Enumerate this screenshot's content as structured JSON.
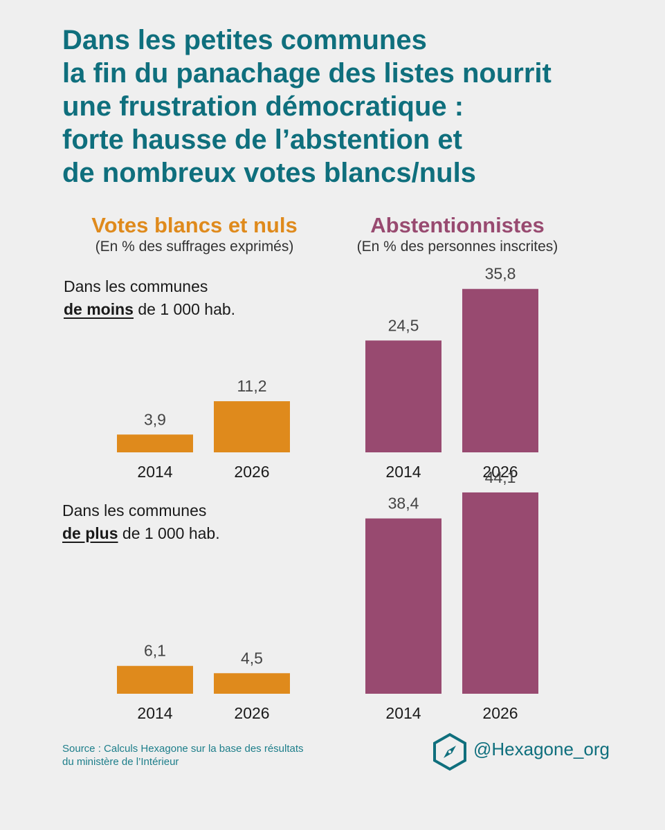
{
  "title_lines": [
    "Dans les petites communes",
    "la fin du panachage des listes nourrit",
    "une frustration démocratique :",
    "forte hausse de l’abstention et",
    "de nombreux votes blancs/nuls"
  ],
  "sections": {
    "blancs": {
      "title": "Votes blancs et nuls",
      "subtitle": "(En % des suffrages exprimés)"
    },
    "abst": {
      "title": "Abstentionnistes",
      "subtitle": "(En % des personnes inscrites)"
    }
  },
  "groups": {
    "small": {
      "line1": "Dans les communes",
      "emph": "de moins",
      "rest": " de 1 000 hab."
    },
    "large": {
      "line1": "Dans les communes",
      "emph": "de plus",
      "rest": " de 1 000 hab."
    }
  },
  "chart_data": [
    {
      "type": "bar",
      "group": "Dans les communes de moins de 1 000 hab.",
      "measure": "Votes blancs et nuls",
      "categories": [
        "2014",
        "2026"
      ],
      "values": [
        3.9,
        11.2
      ],
      "labels": [
        "3,9",
        "11,2"
      ]
    },
    {
      "type": "bar",
      "group": "Dans les communes de moins de 1 000 hab.",
      "measure": "Abstentionnistes",
      "categories": [
        "2014",
        "2026"
      ],
      "values": [
        24.5,
        35.8
      ],
      "labels": [
        "24,5",
        "35,8"
      ]
    },
    {
      "type": "bar",
      "group": "Dans les communes de plus de 1 000 hab.",
      "measure": "Votes blancs et nuls",
      "categories": [
        "2014",
        "2026"
      ],
      "values": [
        6.1,
        4.5
      ],
      "labels": [
        "6,1",
        "4,5"
      ]
    },
    {
      "type": "bar",
      "group": "Dans les communes de plus de 1 000 hab.",
      "measure": "Abstentionnistes",
      "categories": [
        "2014",
        "2026"
      ],
      "values": [
        38.4,
        44.1
      ],
      "labels": [
        "38,4",
        "44,1"
      ]
    }
  ],
  "colors": {
    "title": "#0f6f7d",
    "blancs": "#df8a1c",
    "abst": "#984a70",
    "source": "#1d7e8a"
  },
  "footer": {
    "source_lines": [
      "Source : Calculs Hexagone sur la base des résultats",
      "du ministère de l’Intérieur"
    ],
    "handle": "@Hexagone_org",
    "logo_icon": "compass-hexagon-icon"
  }
}
